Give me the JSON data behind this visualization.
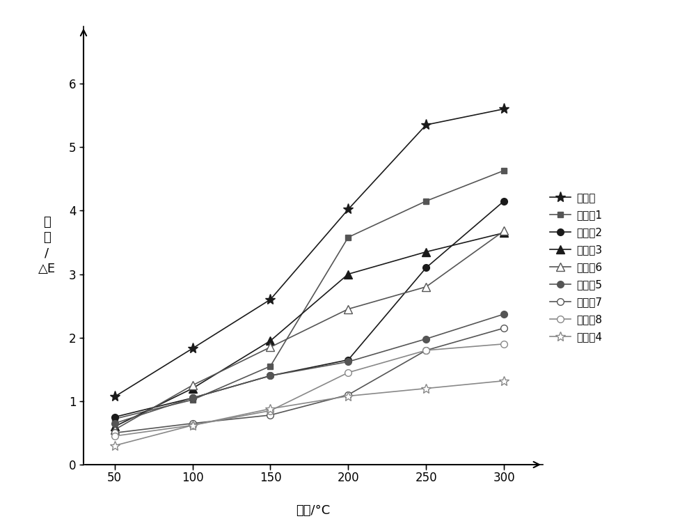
{
  "x": [
    50,
    100,
    150,
    200,
    250,
    300
  ],
  "series": [
    {
      "label": "对照组",
      "values": [
        1.07,
        1.83,
        2.6,
        4.02,
        5.35,
        5.6
      ],
      "color": "#1a1a1a",
      "marker": "*",
      "markersize": 11,
      "linestyle": "-",
      "markerfacecolor": "#1a1a1a",
      "lw": 1.2
    },
    {
      "label": "试验组1",
      "values": [
        0.72,
        1.02,
        1.55,
        3.58,
        4.15,
        4.63
      ],
      "color": "#555555",
      "marker": "s",
      "markersize": 6,
      "linestyle": "-",
      "markerfacecolor": "#555555",
      "lw": 1.2
    },
    {
      "label": "试验组2",
      "values": [
        0.75,
        1.05,
        1.4,
        1.65,
        3.1,
        4.15
      ],
      "color": "#1a1a1a",
      "marker": "o",
      "markersize": 7,
      "linestyle": "-",
      "markerfacecolor": "#1a1a1a",
      "lw": 1.2
    },
    {
      "label": "试验组3",
      "values": [
        0.6,
        1.2,
        1.95,
        3.0,
        3.35,
        3.65
      ],
      "color": "#1a1a1a",
      "marker": "^",
      "markersize": 8,
      "linestyle": "-",
      "markerfacecolor": "#1a1a1a",
      "lw": 1.2
    },
    {
      "label": "试验组6",
      "values": [
        0.55,
        1.25,
        1.85,
        2.45,
        2.8,
        3.68
      ],
      "color": "#555555",
      "marker": "^",
      "markersize": 8,
      "linestyle": "-",
      "markerfacecolor": "white",
      "lw": 1.2
    },
    {
      "label": "试验组5",
      "values": [
        0.65,
        1.05,
        1.4,
        1.62,
        1.98,
        2.37
      ],
      "color": "#555555",
      "marker": "o",
      "markersize": 7,
      "linestyle": "-",
      "markerfacecolor": "#555555",
      "lw": 1.2
    },
    {
      "label": "试验组7",
      "values": [
        0.5,
        0.65,
        0.78,
        1.1,
        1.8,
        2.15
      ],
      "color": "#555555",
      "marker": "o",
      "markersize": 7,
      "linestyle": "-",
      "markerfacecolor": "white",
      "lw": 1.2
    },
    {
      "label": "试验组8",
      "values": [
        0.45,
        0.62,
        0.85,
        1.45,
        1.8,
        1.9
      ],
      "color": "#888888",
      "marker": "o",
      "markersize": 7,
      "linestyle": "-",
      "markerfacecolor": "white",
      "lw": 1.2
    },
    {
      "label": "试验组4",
      "values": [
        0.3,
        0.62,
        0.88,
        1.08,
        1.2,
        1.32
      ],
      "color": "#888888",
      "marker": "*",
      "markersize": 10,
      "linestyle": "-",
      "markerfacecolor": "white",
      "lw": 1.2
    }
  ],
  "xlabel": "温度/°C",
  "ylabel_lines": [
    "色",
    "差",
    "/",
    "△E"
  ],
  "xlim": [
    30,
    325
  ],
  "ylim": [
    0,
    6.9
  ],
  "yticks": [
    0,
    1,
    2,
    3,
    4,
    5,
    6
  ],
  "xticks": [
    50,
    100,
    150,
    200,
    250,
    300
  ],
  "background_color": "#ffffff",
  "grid": false,
  "legend_fontsize": 11,
  "axis_fontsize": 13,
  "tick_fontsize": 12
}
